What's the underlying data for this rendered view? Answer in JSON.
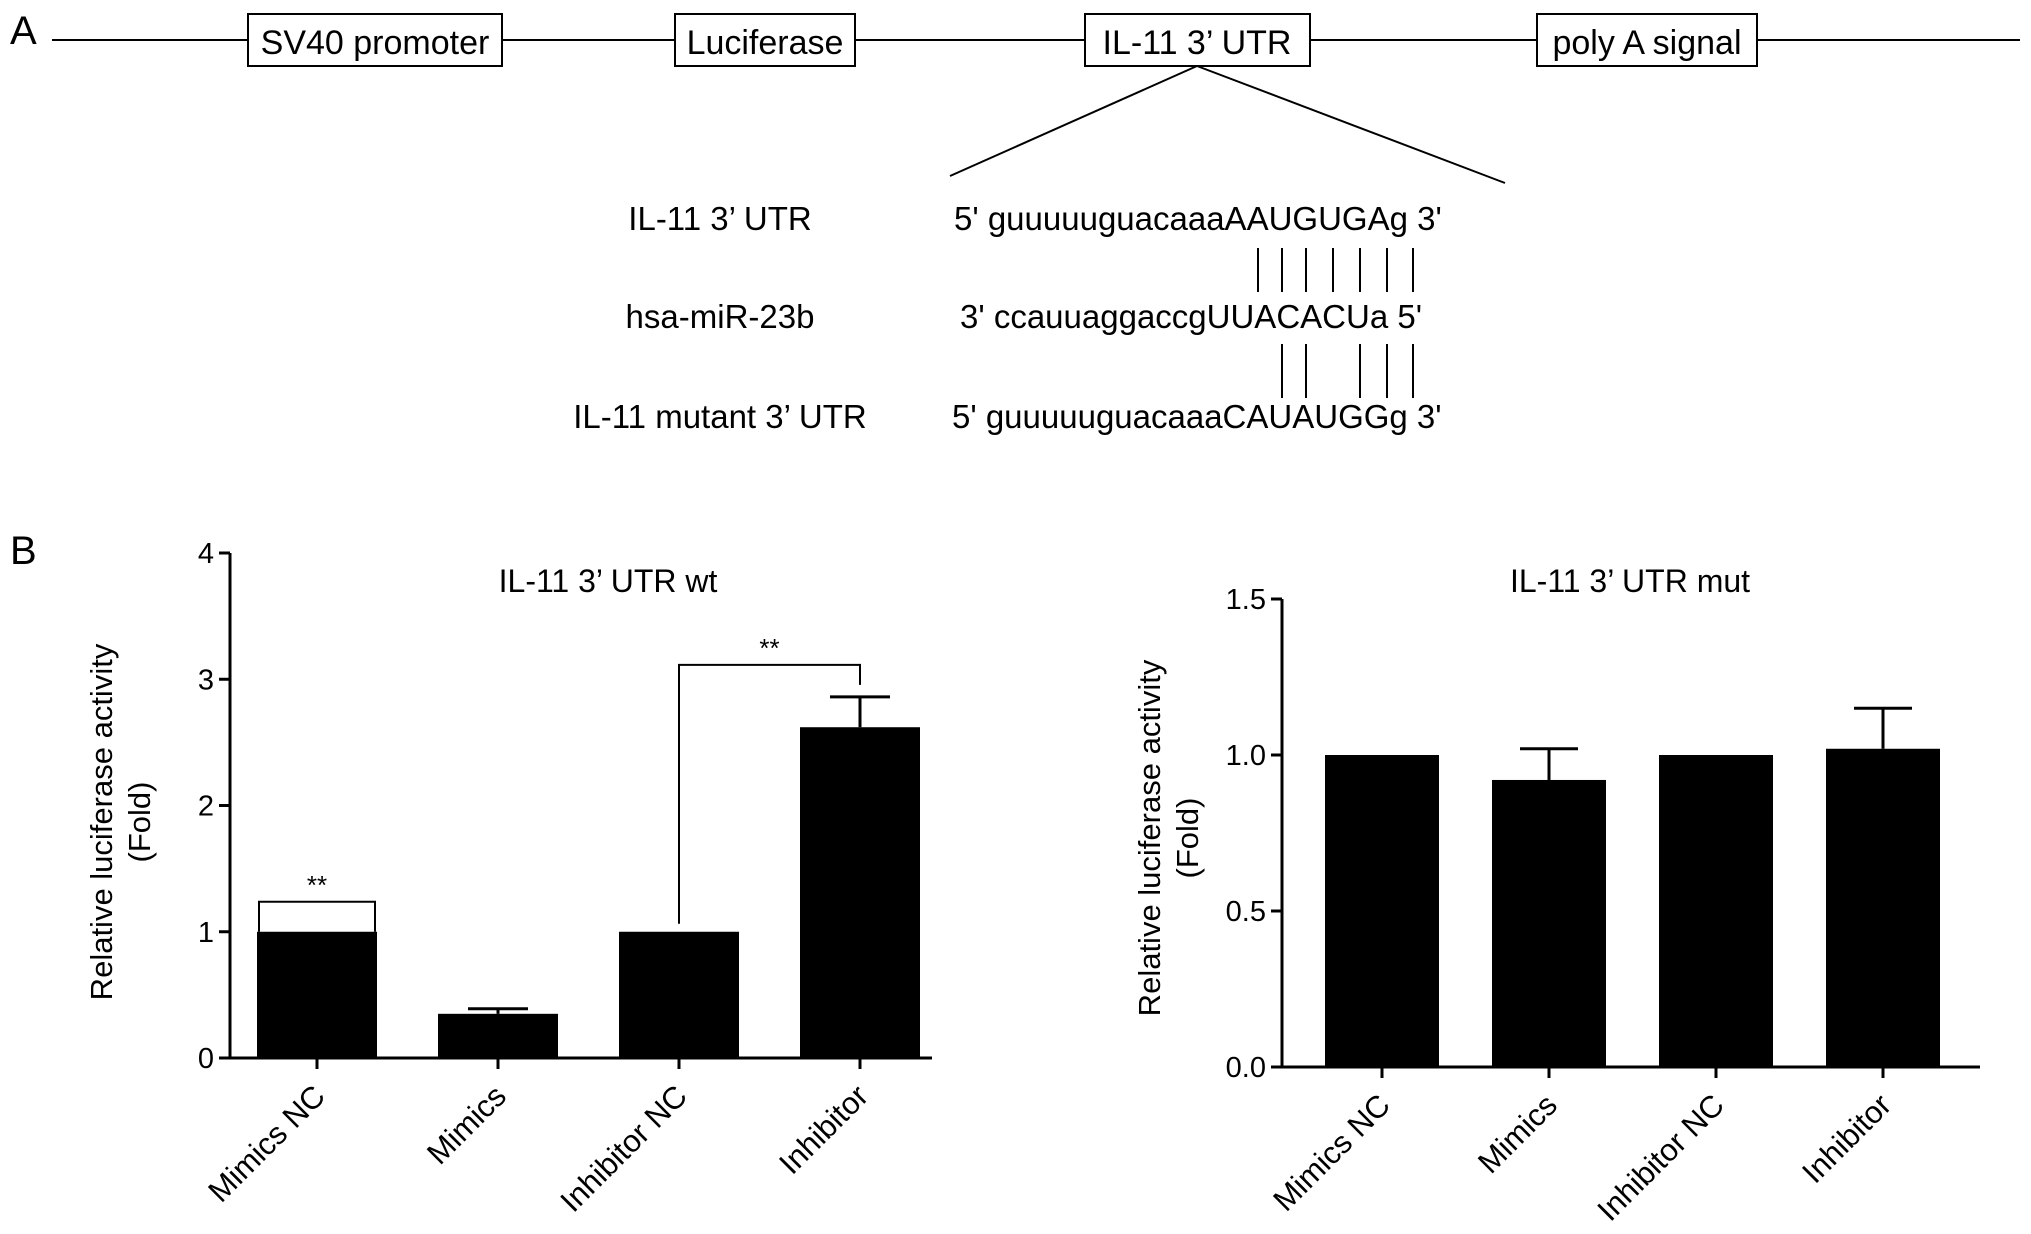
{
  "panel_a": {
    "letter": "A",
    "construct_boxes": [
      {
        "label": "SV40 promoter"
      },
      {
        "label": "Luciferase"
      },
      {
        "label": "IL-11 3’ UTR"
      },
      {
        "label": "poly A signal"
      }
    ],
    "sequences": [
      {
        "name": "IL-11 3’ UTR",
        "sequence": "5' guuuuuguacaaaAAUGUGAg 3'"
      },
      {
        "name": "hsa-miR-23b",
        "sequence": "3' ccauuaggaccgUUACACUa 5'"
      },
      {
        "name": "IL-11 mutant 3’ UTR",
        "sequence": "5' guuuuuguacaaaCAUAUGGg 3'"
      }
    ]
  },
  "panel_b": {
    "letter": "B"
  },
  "chart_data": [
    {
      "type": "bar",
      "title": "IL-11 3’ UTR wt",
      "ylabel_line1": "Relative luciferase activity",
      "ylabel_line2": "(Fold)",
      "categories": [
        "Mimics NC",
        "Mimics",
        "Inhibitor NC",
        "Inhibitor"
      ],
      "values": [
        1.0,
        0.35,
        1.0,
        2.62
      ],
      "errors": [
        0,
        0.04,
        0,
        0.24
      ],
      "ylim": [
        0,
        4
      ],
      "yticks": [
        "0",
        "1",
        "2",
        "3",
        "4"
      ],
      "bar_color": "#000000",
      "significance": [
        {
          "from": 0,
          "to": 0,
          "label": "**"
        },
        {
          "from": 2,
          "to": 3,
          "label": "**"
        }
      ]
    },
    {
      "type": "bar",
      "title": "IL-11 3’ UTR mut",
      "ylabel_line1": "Relative luciferase activity",
      "ylabel_line2": "(Fold)",
      "categories": [
        "Mimics NC",
        "Mimics",
        "Inhibitor NC",
        "Inhibitor"
      ],
      "values": [
        1.0,
        0.92,
        1.0,
        1.02
      ],
      "errors": [
        0,
        0.1,
        0,
        0.13
      ],
      "ylim": [
        0,
        1.5
      ],
      "yticks": [
        "0.0",
        "0.5",
        "1.0",
        "1.5"
      ],
      "bar_color": "#000000",
      "significance": []
    }
  ]
}
